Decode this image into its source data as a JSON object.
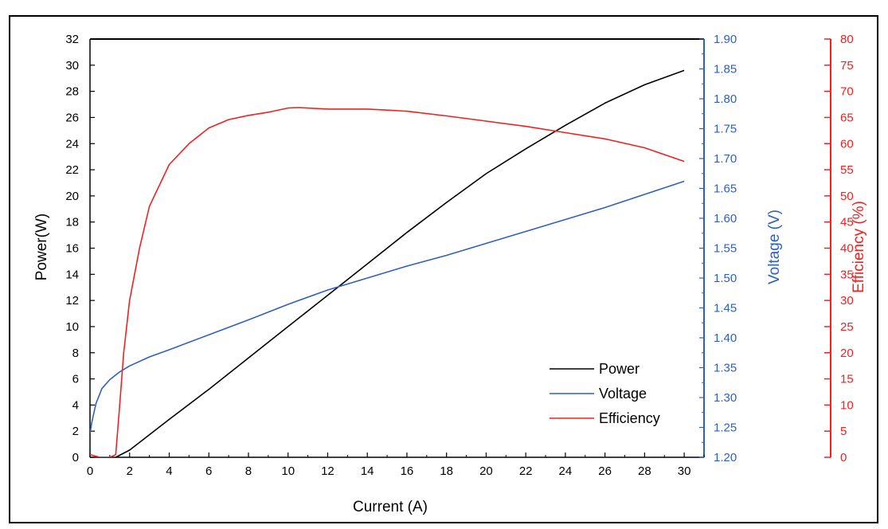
{
  "chart_data": {
    "type": "line",
    "title": "",
    "xlabel": "Current (A)",
    "ylabel_left": "Power(W)",
    "ylabel_right1": "Voltage (V)",
    "ylabel_right2": "Efficiency (%)",
    "xlim": [
      0,
      31
    ],
    "ylim_left": [
      0,
      32
    ],
    "ylim_right1": [
      1.2,
      1.9
    ],
    "ylim_right2": [
      0,
      80
    ],
    "x_ticks": [
      0,
      2,
      4,
      6,
      8,
      10,
      12,
      14,
      16,
      18,
      20,
      22,
      24,
      26,
      28,
      30
    ],
    "y_left_ticks": [
      0,
      2,
      4,
      6,
      8,
      10,
      12,
      14,
      16,
      18,
      20,
      22,
      24,
      26,
      28,
      30,
      32
    ],
    "y_right1_ticks": [
      "1.20",
      "1.25",
      "1.30",
      "1.35",
      "1.40",
      "1.45",
      "1.50",
      "1.55",
      "1.60",
      "1.65",
      "1.70",
      "1.75",
      "1.80",
      "1.85",
      "1.90"
    ],
    "y_right2_ticks": [
      0,
      5,
      10,
      15,
      20,
      25,
      30,
      35,
      40,
      45,
      50,
      55,
      60,
      65,
      70,
      75,
      80
    ],
    "grid": false,
    "legend_position": "bottom-right",
    "colors": {
      "power": "#000000",
      "voltage": "#2f5fbf",
      "efficiency": "#ee2222",
      "axis_left": "#000000",
      "axis_voltage": "#2f5fbf",
      "axis_efficiency": "#ee2222"
    },
    "series": [
      {
        "name": "Power",
        "axis": "left",
        "color_key": "power",
        "x": [
          1.3,
          2,
          4,
          6,
          8,
          10,
          12,
          14,
          16,
          18,
          20,
          22,
          24,
          26,
          28,
          30
        ],
        "y": [
          0,
          0.55,
          2.9,
          5.2,
          7.6,
          10.0,
          12.4,
          14.8,
          17.2,
          19.5,
          21.7,
          23.6,
          25.4,
          27.1,
          28.5,
          29.6
        ]
      },
      {
        "name": "Voltage",
        "axis": "right1",
        "color_key": "voltage",
        "x": [
          0,
          0.1,
          0.3,
          0.6,
          1.0,
          1.5,
          2,
          3,
          4,
          6,
          8,
          10,
          12,
          14,
          16,
          18,
          20,
          22,
          24,
          26,
          28,
          30
        ],
        "y": [
          1.24,
          1.26,
          1.29,
          1.315,
          1.33,
          1.343,
          1.353,
          1.368,
          1.38,
          1.405,
          1.43,
          1.456,
          1.48,
          1.5,
          1.52,
          1.538,
          1.558,
          1.578,
          1.598,
          1.618,
          1.64,
          1.662
        ]
      },
      {
        "name": "Efficiency",
        "axis": "right2",
        "color_key": "efficiency",
        "x": [
          0,
          0.5,
          1.0,
          1.3,
          1.5,
          1.7,
          2,
          2.5,
          3,
          4,
          5,
          6,
          7,
          8,
          9,
          10,
          10.5,
          12,
          14,
          15,
          16,
          18,
          20,
          22,
          24,
          26,
          28,
          30
        ],
        "y": [
          0.5,
          0,
          0,
          0.5,
          10,
          20,
          30,
          40,
          48,
          56,
          60,
          63,
          64.6,
          65.4,
          66,
          66.8,
          66.9,
          66.6,
          66.6,
          66.4,
          66.2,
          65.3,
          64.3,
          63.3,
          62.1,
          60.9,
          59.2,
          56.6
        ]
      }
    ]
  }
}
